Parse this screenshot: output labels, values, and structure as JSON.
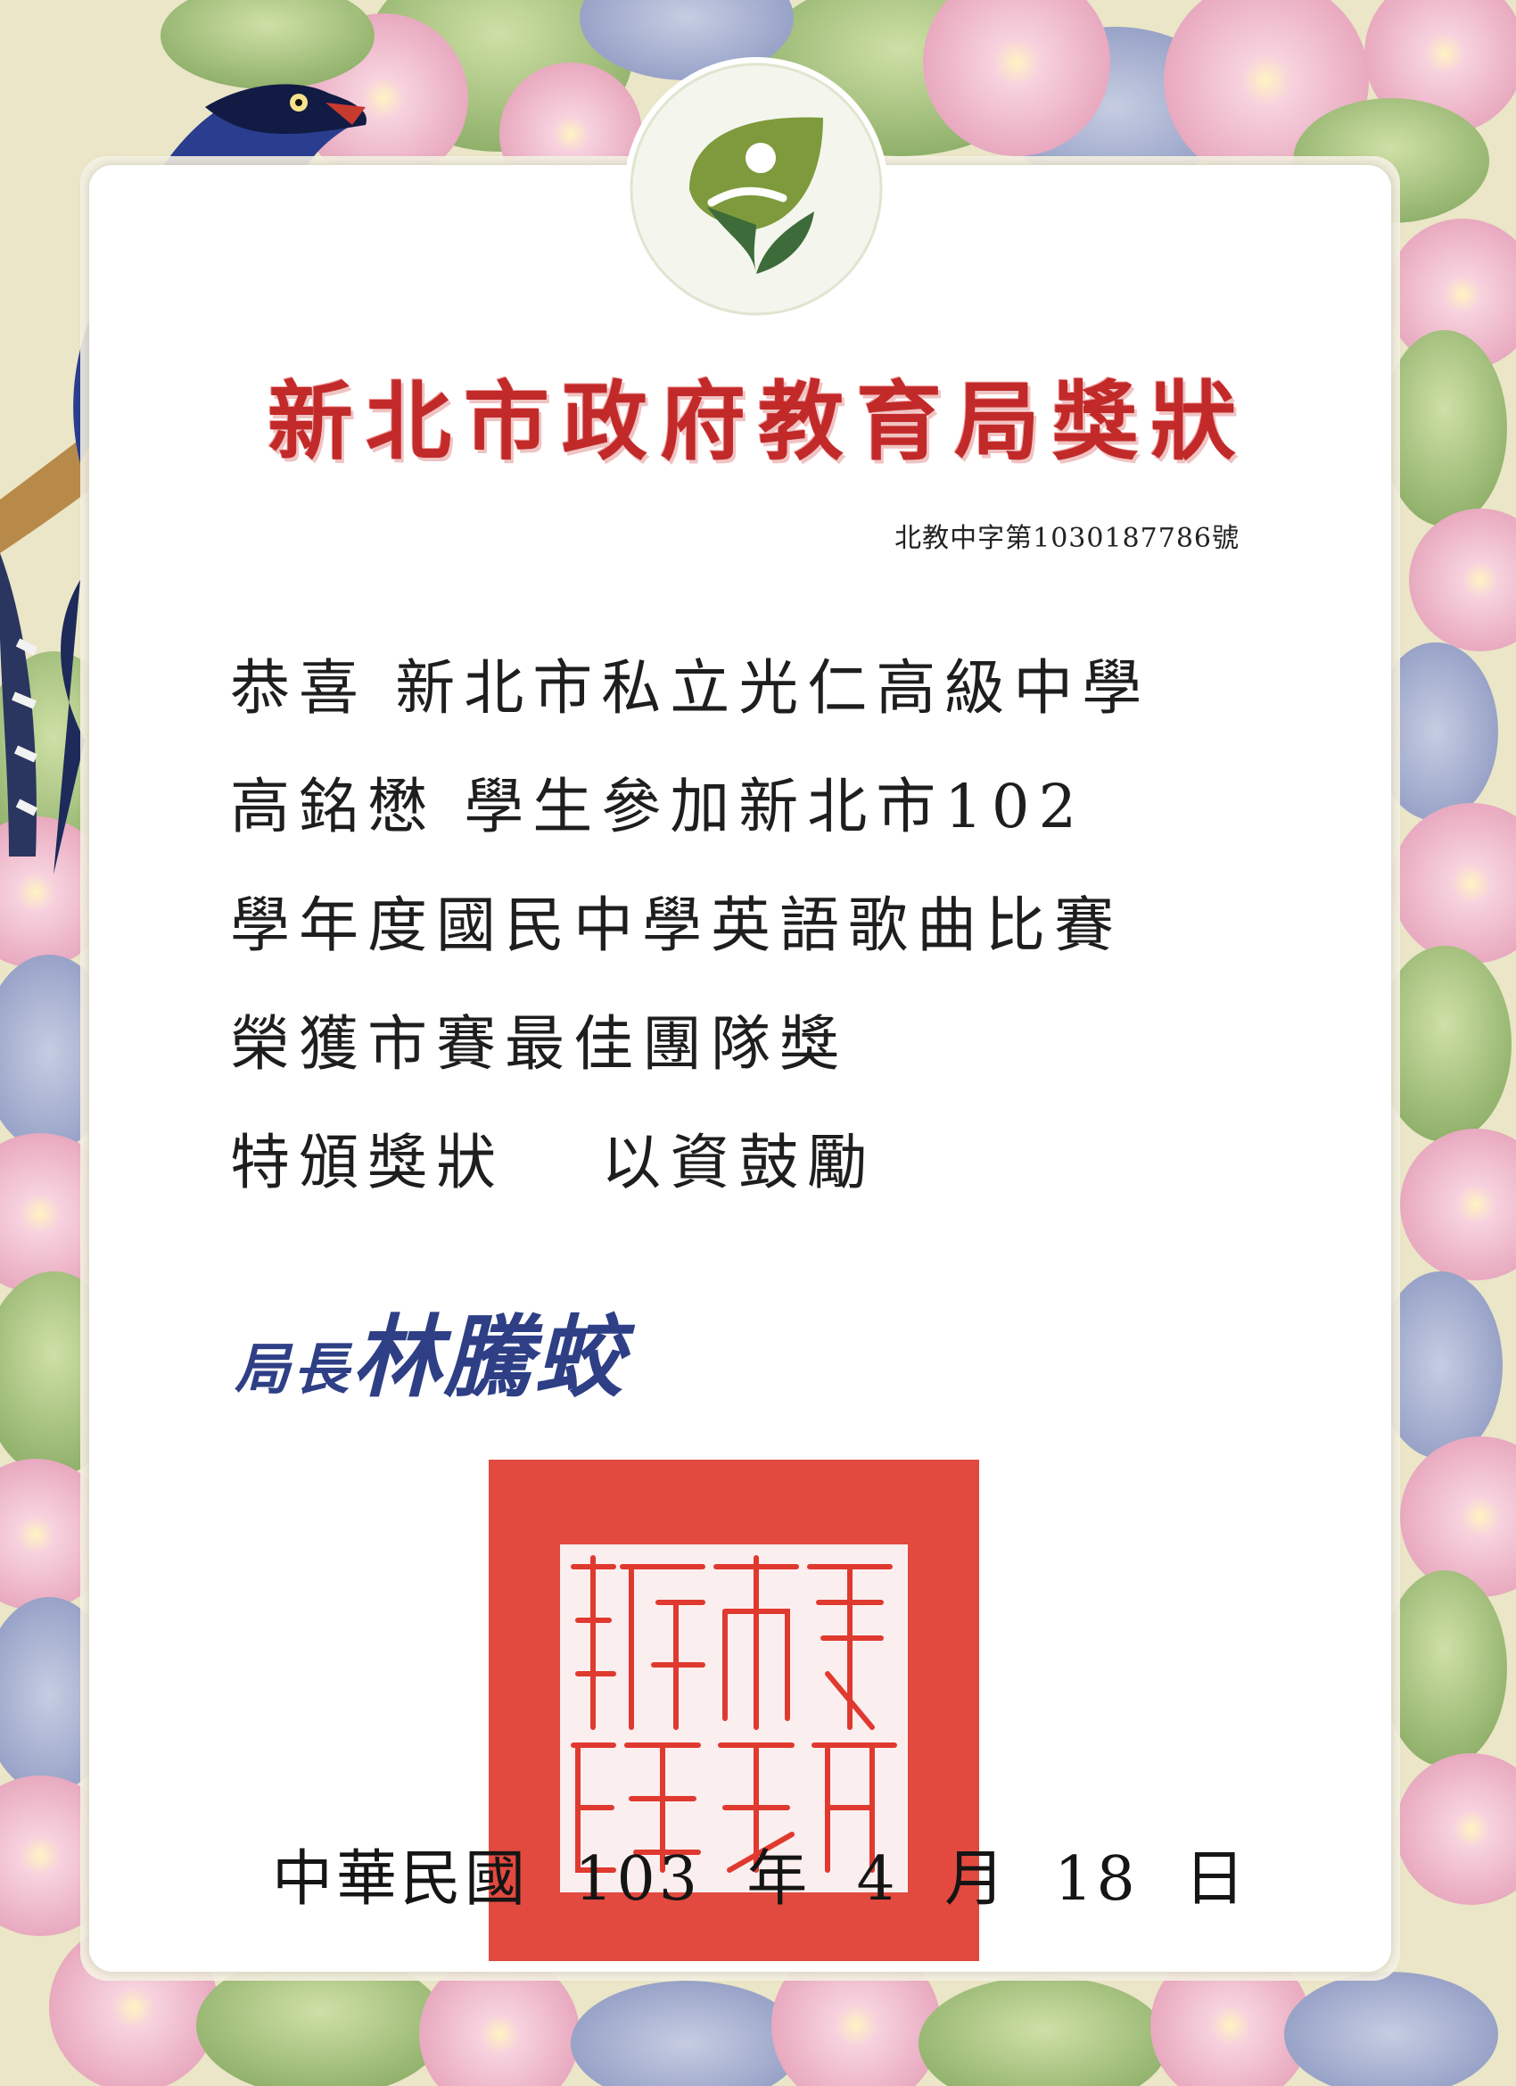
{
  "certificate": {
    "title": "新北市政府教育局獎狀",
    "doc_number": "北教中字第1030187786號",
    "body_lines": [
      "恭喜 新北市私立光仁高級中學",
      "高銘懋 學生參加新北市102",
      "學年度國民中學英語歌曲比賽",
      "榮獲市賽最佳團隊獎",
      "特頒獎狀　 以資鼓勵"
    ],
    "signature": {
      "role": "局長",
      "name": "林騰蛟"
    },
    "seal_text": "新北市政府教育局",
    "date": {
      "era": "中華民國",
      "year": "103",
      "year_unit": "年",
      "month": "4",
      "month_unit": "月",
      "day": "18",
      "day_unit": "日"
    }
  },
  "colors": {
    "title": "#c22a2a",
    "seal": "#e0392f",
    "signature": "#2e3f86",
    "logo_green": "#7e9a3c",
    "logo_dark": "#3e6b3a"
  }
}
